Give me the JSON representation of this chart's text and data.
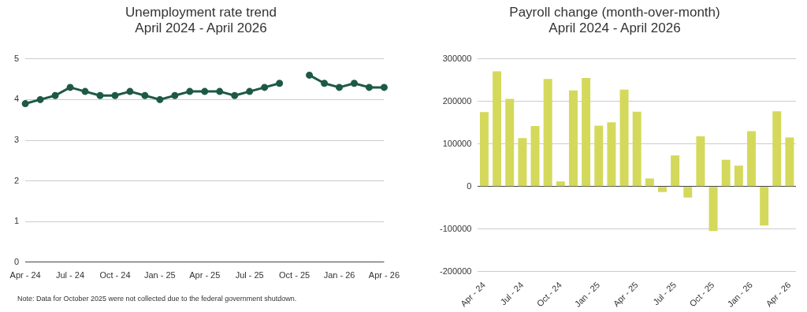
{
  "chart_data": [
    {
      "type": "line",
      "title": "Unemployment rate trend",
      "subtitle": "April 2024 - April 2026",
      "categories": [
        "Apr - 24",
        null,
        null,
        "Jul - 24",
        null,
        null,
        "Oct - 24",
        null,
        null,
        "Jan - 25",
        null,
        null,
        "Apr - 25",
        null,
        null,
        "Jul - 25",
        null,
        null,
        "Oct - 25",
        null,
        null,
        "Jan - 26",
        null,
        null,
        "Apr - 26"
      ],
      "series": [
        {
          "color": "#1d5a45",
          "values": [
            3.9,
            4.0,
            4.1,
            4.3,
            4.2,
            4.1,
            4.1,
            4.2,
            4.1,
            4.0,
            4.1,
            4.2,
            4.2,
            4.2,
            4.1,
            4.2,
            4.3,
            4.4,
            null,
            4.6,
            4.4,
            4.3,
            4.4,
            4.3,
            4.3
          ]
        }
      ],
      "ylim": [
        0,
        5
      ],
      "yticks": [
        0,
        1,
        2,
        3,
        4,
        5
      ],
      "grid": "y",
      "legend": false,
      "marker": "circle",
      "line_style": "solid",
      "annotations": [
        "Note: Data for October 2025 were not collected due to the federal government shutdown."
      ]
    },
    {
      "type": "bar",
      "title": "Payroll change (month-over-month)",
      "subtitle": "April 2024 - April 2026",
      "categories": [
        "Apr - 24",
        null,
        null,
        "Jul - 24",
        null,
        null,
        "Oct - 24",
        null,
        null,
        "Jan - 25",
        null,
        null,
        "Apr - 25",
        null,
        null,
        "Jul - 25",
        null,
        null,
        "Oct - 25",
        null,
        null,
        "Jan - 26",
        null,
        null,
        "Apr - 26"
      ],
      "series": [
        {
          "color": "#d4d95b",
          "values": [
            175000,
            271000,
            206000,
            114000,
            142000,
            253000,
            12000,
            226000,
            255000,
            143000,
            151000,
            228000,
            176000,
            19000,
            -13000,
            73000,
            -26000,
            118000,
            -105000,
            63000,
            49000,
            130000,
            -92000,
            177000,
            115000
          ]
        }
      ],
      "ylim": [
        -200000,
        300000
      ],
      "yticks": [
        -200000,
        -100000,
        0,
        100000,
        200000,
        300000
      ],
      "grid": "y",
      "legend": false
    }
  ]
}
